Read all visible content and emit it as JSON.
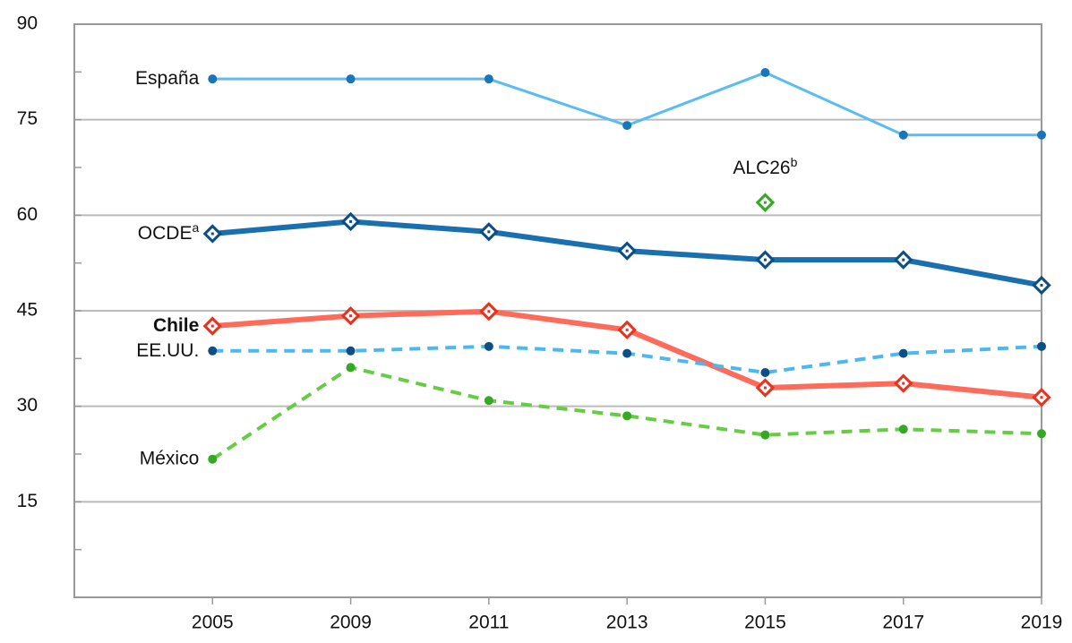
{
  "chart_data": {
    "type": "line",
    "categories": [
      "2005",
      "2009",
      "2011",
      "2013",
      "2015",
      "2017",
      "2019"
    ],
    "ylim": [
      0,
      90
    ],
    "yticks": [
      15,
      30,
      45,
      60,
      75,
      90
    ],
    "grid": true,
    "series": [
      {
        "name": "España",
        "color": "#5bbcf5",
        "marker": "dot",
        "marker_color": "#1a75bb",
        "dash": false,
        "width": 3,
        "values": [
          81.4,
          81.4,
          81.4,
          74.1,
          82.4,
          72.6,
          72.6
        ]
      },
      {
        "name": "OCDE",
        "name_note": "a",
        "color": "#1a6faf",
        "marker": "diamond",
        "marker_color": "#0d4f85",
        "dash": false,
        "width": 6,
        "values": [
          57.1,
          59,
          57.4,
          54.4,
          53,
          53,
          49
        ]
      },
      {
        "name": "Chile",
        "bold": true,
        "color": "#ff6b5b",
        "marker": "diamond",
        "marker_color": "#e8321e",
        "dash": false,
        "width": 6,
        "values": [
          42.6,
          44.2,
          44.9,
          42,
          32.9,
          33.6,
          31.4
        ]
      },
      {
        "name": "EE.UU.",
        "color": "#4db8ef",
        "marker": "dot",
        "marker_color": "#0d4f85",
        "dash": true,
        "width": 4,
        "values": [
          38.7,
          38.7,
          39.4,
          38.3,
          35.3,
          38.3,
          39.4
        ]
      },
      {
        "name": "México",
        "color": "#66cc44",
        "marker": "dot",
        "marker_color": "#33aa22",
        "dash": true,
        "width": 4,
        "values": [
          21.7,
          36.1,
          30.9,
          28.5,
          25.5,
          26.4,
          25.7
        ]
      },
      {
        "name": "ALC26",
        "name_note": "b",
        "color": "#33aa22",
        "marker": "diamond",
        "marker_color": "#33aa22",
        "dash": false,
        "width": 3,
        "values": [
          null,
          null,
          null,
          null,
          62,
          null,
          null
        ]
      }
    ]
  }
}
